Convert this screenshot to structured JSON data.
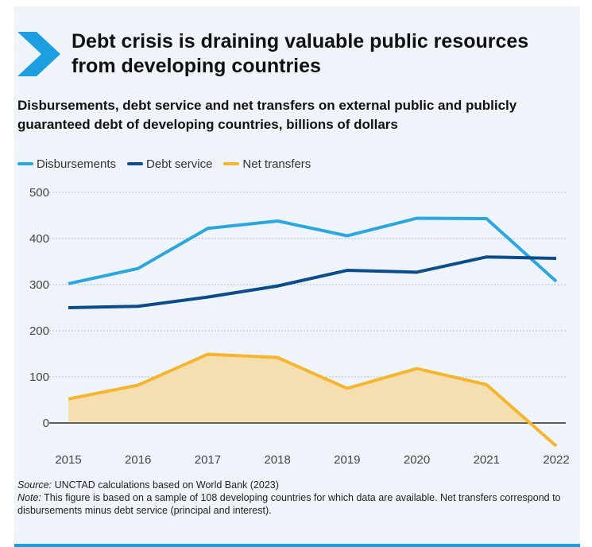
{
  "title": "Debt crisis is draining valuable public resources from developing countries",
  "subtitle": "Disbursements, debt service and net transfers on external public and publicly guaranteed debt of developing countries, billions of dollars",
  "source_label": "Source:",
  "source_text": "UNCTAD calculations based on World Bank (2023)",
  "note_label": "Note:",
  "note_text": "This figure is based on a sample of 108 developing countries for which data are available. Net transfers correspond to disbursements minus debt service (principal and interest).",
  "colors": {
    "accent": "#1d9ee0",
    "background": "#eef4f9",
    "disbursements": "#2ba6de",
    "debt_service": "#0d4c8a",
    "net_transfers": "#f5b52e",
    "net_transfers_fill": "#f5deb0"
  },
  "chart_data": {
    "type": "line",
    "x": [
      "2015",
      "2016",
      "2017",
      "2018",
      "2019",
      "2020",
      "2021",
      "2022"
    ],
    "series": [
      {
        "name": "Disbursements",
        "values": [
          302,
          335,
          422,
          438,
          406,
          444,
          443,
          307
        ]
      },
      {
        "name": "Debt service",
        "values": [
          250,
          253,
          273,
          297,
          331,
          327,
          360,
          357
        ]
      },
      {
        "name": "Net transfers",
        "values": [
          52,
          82,
          149,
          142,
          75,
          118,
          83,
          -50
        ]
      }
    ],
    "ylim": [
      -50,
      500
    ],
    "yticks": [
      0,
      100,
      200,
      300,
      400,
      500
    ],
    "grid": true,
    "legend_position": "top-left"
  }
}
